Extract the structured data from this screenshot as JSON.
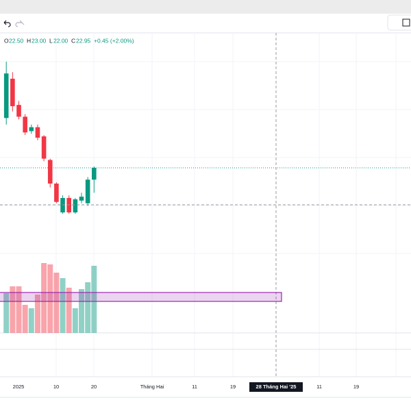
{
  "legend": {
    "open_label": "O",
    "open": "22.50",
    "high_label": "H",
    "high": "23.00",
    "low_label": "L",
    "low": "22.00",
    "close_label": "C",
    "close": "22.95",
    "change": "+0.45 (+2.00%)"
  },
  "candles": [
    {
      "open": 24.85,
      "high": 27.0,
      "low": 24.6,
      "close": 26.55,
      "volume": 58
    },
    {
      "open": 26.35,
      "high": 26.6,
      "low": 25.1,
      "close": 25.3,
      "volume": 68
    },
    {
      "open": 25.35,
      "high": 25.5,
      "low": 24.8,
      "close": 24.9,
      "volume": 68
    },
    {
      "open": 24.9,
      "high": 25.0,
      "low": 24.2,
      "close": 24.3,
      "volume": 41
    },
    {
      "open": 24.35,
      "high": 24.6,
      "low": 24.25,
      "close": 24.5,
      "volume": 36
    },
    {
      "open": 24.5,
      "high": 24.6,
      "low": 24.0,
      "close": 24.1,
      "volume": 56
    },
    {
      "open": 24.15,
      "high": 24.2,
      "low": 23.2,
      "close": 23.3,
      "volume": 102
    },
    {
      "open": 23.25,
      "high": 23.3,
      "low": 22.2,
      "close": 22.35,
      "volume": 100
    },
    {
      "open": 22.35,
      "high": 22.4,
      "low": 21.6,
      "close": 21.65,
      "volume": 88
    },
    {
      "open": 21.25,
      "high": 21.9,
      "low": 21.2,
      "close": 21.8,
      "volume": 80
    },
    {
      "open": 21.8,
      "high": 21.9,
      "low": 21.2,
      "close": 21.25,
      "volume": 66
    },
    {
      "open": 21.25,
      "high": 21.8,
      "low": 21.2,
      "close": 21.75,
      "volume": 36
    },
    {
      "open": 21.7,
      "high": 22.0,
      "low": 21.6,
      "close": 21.85,
      "volume": 64
    },
    {
      "open": 21.6,
      "high": 22.6,
      "low": 21.5,
      "close": 22.5,
      "volume": 74
    },
    {
      "open": 22.5,
      "high": 23.0,
      "low": 22.0,
      "close": 22.95,
      "volume": 98
    }
  ],
  "time_axis": [
    "2025",
    "10",
    "20",
    "Tháng Hai",
    "11",
    "19",
    "28 Tháng Hai '25",
    "11",
    "19"
  ]
}
